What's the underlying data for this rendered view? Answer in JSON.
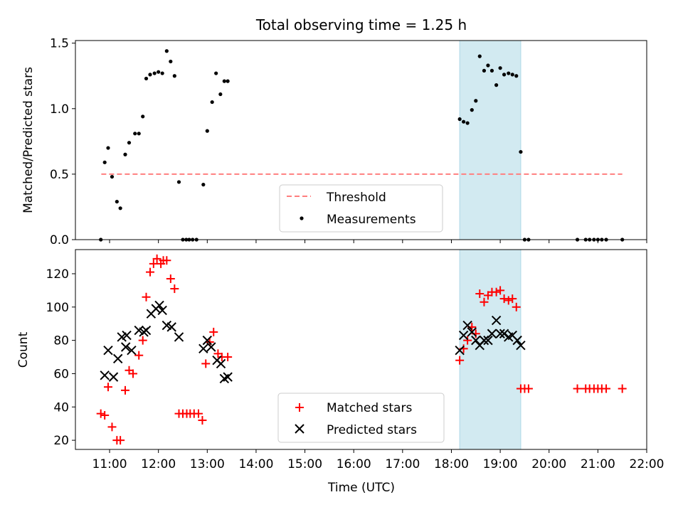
{
  "chart_data": [
    {
      "type": "scatter",
      "title": "Total observing time = 1.25 h",
      "xlabel": "",
      "ylabel": "Matched/Predicted stars",
      "xlim": [
        10.3,
        22.0
      ],
      "ylim": [
        0.0,
        1.52
      ],
      "yticks": [
        0.0,
        0.5,
        1.0,
        1.5
      ],
      "ytick_labels": [
        "0.0",
        "0.5",
        "1.0",
        "1.5"
      ],
      "shaded_span": {
        "x0": 18.17,
        "x1": 19.42,
        "color": "#add8e6"
      },
      "threshold": {
        "name": "Threshold",
        "y": 0.5,
        "x": [
          10.83,
          21.5
        ],
        "color": "#ff7f7f",
        "style": "dashed"
      },
      "series": [
        {
          "name": "Measurements",
          "color": "#000000",
          "marker": "dot",
          "x": [
            10.82,
            10.9,
            10.97,
            11.05,
            11.15,
            11.22,
            11.32,
            11.4,
            11.52,
            11.6,
            11.68,
            11.75,
            11.83,
            11.92,
            12.0,
            12.08,
            12.17,
            12.25,
            12.33,
            12.42,
            12.5,
            12.57,
            12.63,
            12.7,
            12.78,
            12.92,
            13.0,
            13.1,
            13.18,
            13.27,
            13.35,
            13.42,
            18.17,
            18.25,
            18.33,
            18.42,
            18.5,
            18.58,
            18.67,
            18.75,
            18.83,
            18.92,
            19.0,
            19.08,
            19.17,
            19.25,
            19.33,
            19.42,
            19.5,
            19.58,
            20.58,
            20.75,
            20.83,
            20.92,
            21.0,
            21.08,
            21.17,
            21.5
          ],
          "y": [
            0.0,
            0.59,
            0.7,
            0.48,
            0.29,
            0.24,
            0.65,
            0.74,
            0.81,
            0.81,
            0.94,
            1.23,
            1.26,
            1.27,
            1.28,
            1.27,
            1.44,
            1.36,
            1.25,
            0.44,
            0.0,
            0.0,
            0.0,
            0.0,
            0.0,
            0.42,
            0.83,
            1.05,
            1.27,
            1.11,
            1.21,
            1.21,
            0.92,
            0.9,
            0.89,
            0.99,
            1.06,
            1.4,
            1.29,
            1.33,
            1.29,
            1.18,
            1.31,
            1.26,
            1.27,
            1.26,
            1.25,
            0.67,
            0.0,
            0.0,
            0.0,
            0.0,
            0.0,
            0.0,
            0.0,
            0.0,
            0.0,
            0.0
          ]
        }
      ],
      "legend": {
        "placement": "lower center",
        "entries": [
          "Threshold",
          "Measurements"
        ]
      }
    },
    {
      "type": "scatter",
      "title": "",
      "xlabel": "Time (UTC)",
      "ylabel": "Count",
      "xlim": [
        10.3,
        22.0
      ],
      "ylim": [
        14.5,
        134.5
      ],
      "xticks": [
        11,
        12,
        13,
        14,
        15,
        16,
        17,
        18,
        19,
        20,
        21,
        22
      ],
      "xtick_labels": [
        "11:00",
        "12:00",
        "13:00",
        "14:00",
        "15:00",
        "16:00",
        "17:00",
        "18:00",
        "19:00",
        "20:00",
        "21:00",
        "22:00"
      ],
      "yticks": [
        20,
        40,
        60,
        80,
        100,
        120
      ],
      "ytick_labels": [
        "20",
        "40",
        "60",
        "80",
        "100",
        "120"
      ],
      "shaded_span": {
        "x0": 18.17,
        "x1": 19.42,
        "color": "#add8e6"
      },
      "series": [
        {
          "name": "Matched stars",
          "color": "#ff0000",
          "marker": "plus",
          "x": [
            10.82,
            10.9,
            10.97,
            11.05,
            11.15,
            11.22,
            11.32,
            11.4,
            11.48,
            11.6,
            11.68,
            11.75,
            11.83,
            11.9,
            11.97,
            12.05,
            12.1,
            12.17,
            12.25,
            12.33,
            12.42,
            12.5,
            12.58,
            12.65,
            12.73,
            12.82,
            12.9,
            12.97,
            13.05,
            13.13,
            13.22,
            13.3,
            13.42,
            18.17,
            18.25,
            18.33,
            18.42,
            18.5,
            18.58,
            18.67,
            18.75,
            18.83,
            18.92,
            19.0,
            19.08,
            19.17,
            19.25,
            19.33,
            19.42,
            19.5,
            19.58,
            20.58,
            20.75,
            20.83,
            20.92,
            21.0,
            21.08,
            21.17,
            21.5
          ],
          "y": [
            36,
            35,
            52,
            28,
            20,
            20,
            50,
            62,
            60,
            71,
            80,
            106,
            121,
            126,
            129,
            126,
            128,
            128,
            117,
            111,
            36,
            36,
            36,
            36,
            36,
            36,
            32,
            66,
            79,
            85,
            72,
            70,
            70,
            68,
            75,
            80,
            88,
            84,
            108,
            103,
            107,
            109,
            109,
            110,
            105,
            104,
            105,
            100,
            51,
            51,
            51,
            51,
            51,
            51,
            51,
            51,
            51,
            51,
            51
          ]
        },
        {
          "name": "Predicted stars",
          "color": "#000000",
          "marker": "x",
          "x": [
            10.9,
            10.97,
            11.08,
            11.17,
            11.25,
            11.33,
            11.35,
            11.45,
            11.6,
            11.7,
            11.75,
            11.85,
            11.95,
            12.02,
            12.08,
            12.17,
            12.27,
            12.42,
            12.92,
            13.0,
            13.08,
            13.2,
            13.28,
            13.35,
            13.42,
            18.17,
            18.25,
            18.33,
            18.42,
            18.5,
            18.58,
            18.67,
            18.75,
            18.83,
            18.92,
            19.0,
            19.08,
            19.17,
            19.25,
            19.35,
            19.42
          ],
          "y": [
            59,
            74,
            58,
            69,
            82,
            76,
            83,
            74,
            86,
            85,
            86,
            96,
            99,
            101,
            98,
            89,
            88,
            82,
            75,
            80,
            76,
            68,
            66,
            57,
            58,
            74,
            83,
            89,
            85,
            80,
            77,
            80,
            80,
            84,
            92,
            84,
            84,
            82,
            83,
            80,
            77
          ]
        }
      ],
      "legend": {
        "placement": "lower center",
        "entries": [
          "Matched stars",
          "Predicted stars"
        ]
      }
    }
  ]
}
